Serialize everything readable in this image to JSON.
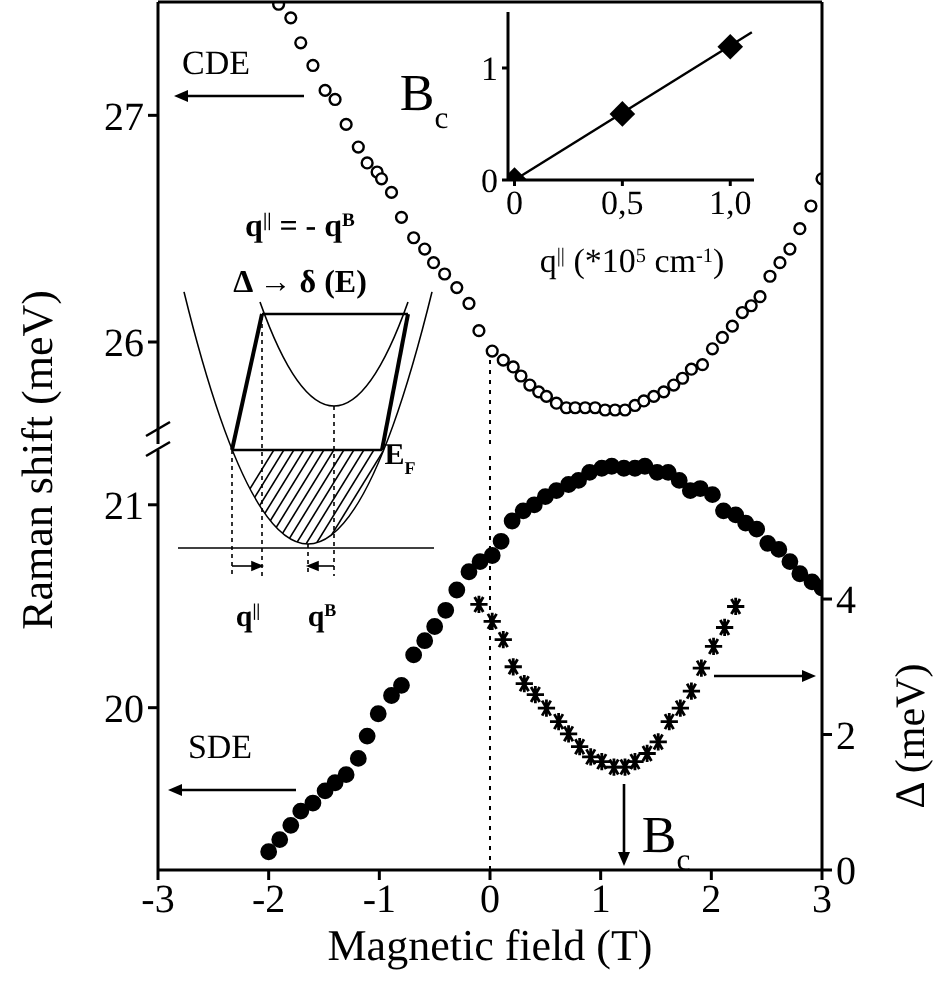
{
  "chart_data": [
    {
      "type": "scatter",
      "ylabel": "Raman shift (meV)",
      "xlim": [
        -3,
        3
      ],
      "ylim": [
        25.55,
        27.5
      ],
      "yticks": [
        26,
        27
      ],
      "tick_labels": "y",
      "series": [
        {
          "name": "CDE",
          "color": "#000000",
          "marker": "circle",
          "x": [
            -1.91,
            -1.8,
            -1.71,
            -1.6,
            -1.49,
            -1.4,
            -1.3,
            -1.19,
            -1.11,
            -1.02,
            -0.98,
            -0.89,
            -0.8,
            -0.69,
            -0.59,
            -0.51,
            -0.41,
            -0.3,
            -0.19,
            -0.1,
            0.02,
            0.12,
            0.21,
            0.28,
            0.36,
            0.44,
            0.51,
            0.6,
            0.69,
            0.77,
            0.86,
            0.95,
            1.04,
            1.13,
            1.22,
            1.31,
            1.39,
            1.48,
            1.57,
            1.66,
            1.74,
            1.82,
            1.92,
            2.01,
            2.1,
            2.19,
            2.28,
            2.36,
            2.44,
            2.53,
            2.62,
            2.71,
            2.8,
            2.9,
            3.0
          ],
          "values": [
            27.49,
            27.43,
            27.32,
            27.22,
            27.11,
            27.07,
            26.96,
            26.86,
            26.79,
            26.75,
            26.72,
            26.66,
            26.55,
            26.46,
            26.41,
            26.35,
            26.3,
            26.24,
            26.17,
            26.05,
            25.96,
            25.92,
            25.89,
            25.85,
            25.81,
            25.78,
            25.76,
            25.73,
            25.71,
            25.71,
            25.71,
            25.71,
            25.7,
            25.7,
            25.7,
            25.72,
            25.74,
            25.76,
            25.78,
            25.81,
            25.84,
            25.88,
            25.9,
            25.97,
            26.02,
            26.07,
            26.13,
            26.16,
            26.2,
            26.29,
            26.35,
            26.41,
            26.5,
            26.6,
            26.72
          ]
        }
      ],
      "ref_lines": [
        {
          "axis": "x",
          "value": 0,
          "color": "#000000",
          "line_style": "dotted"
        }
      ],
      "annotations": [
        "q$^{||}$ = - q$^{B}$",
        "Δ → δ (E)",
        "E$_{F}$",
        "q$^{||}$",
        "q$^{B}$"
      ]
    },
    {
      "type": "scatter",
      "xlabel": "Magnetic field (T)",
      "y2label": "Δ (meV)",
      "xlim": [
        -3,
        3
      ],
      "xticks": [
        -3,
        -2,
        -1,
        0,
        1,
        2,
        3
      ],
      "ylim": [
        19.2,
        21.27
      ],
      "yticks": [
        20,
        21
      ],
      "y2lim": [
        0,
        6.2
      ],
      "y2ticks": [
        0,
        2,
        4
      ],
      "series": [
        {
          "name": "SDE",
          "color": "#000000",
          "marker": "circle",
          "x": [
            -2.0,
            -1.9,
            -1.8,
            -1.71,
            -1.6,
            -1.49,
            -1.4,
            -1.3,
            -1.19,
            -1.11,
            -1.01,
            -0.89,
            -0.8,
            -0.69,
            -0.59,
            -0.5,
            -0.4,
            -0.3,
            -0.19,
            -0.09,
            0.02,
            0.1,
            0.2,
            0.3,
            0.4,
            0.5,
            0.6,
            0.71,
            0.8,
            0.9,
            1.01,
            1.1,
            1.21,
            1.31,
            1.4,
            1.51,
            1.61,
            1.71,
            1.81,
            1.9,
            2.01,
            2.11,
            2.22,
            2.31,
            2.41,
            2.51,
            2.61,
            2.71,
            2.8,
            2.91,
            3.0
          ],
          "values": [
            19.29,
            19.35,
            19.42,
            19.49,
            19.53,
            19.59,
            19.63,
            19.67,
            19.75,
            19.86,
            19.97,
            20.06,
            20.11,
            20.26,
            20.33,
            20.4,
            20.48,
            20.58,
            20.67,
            20.72,
            20.75,
            20.82,
            20.92,
            20.97,
            21.0,
            21.04,
            21.07,
            21.1,
            21.12,
            21.16,
            21.18,
            21.19,
            21.18,
            21.18,
            21.19,
            21.16,
            21.16,
            21.12,
            21.07,
            21.08,
            21.05,
            20.97,
            20.95,
            20.91,
            20.88,
            20.81,
            20.78,
            20.72,
            20.66,
            20.62,
            20.59
          ]
        },
        {
          "axis": "y2",
          "color": "#000000",
          "marker": "cross",
          "x": [
            -0.1,
            0.02,
            0.12,
            0.21,
            0.31,
            0.41,
            0.51,
            0.62,
            0.71,
            0.81,
            0.91,
            1.01,
            1.12,
            1.22,
            1.31,
            1.42,
            1.52,
            1.62,
            1.72,
            1.82,
            1.91,
            2.02,
            2.12,
            2.22
          ],
          "values": [
            3.92,
            3.67,
            3.4,
            3.0,
            2.75,
            2.59,
            2.39,
            2.19,
            2.01,
            1.82,
            1.67,
            1.6,
            1.52,
            1.52,
            1.6,
            1.72,
            1.89,
            2.19,
            2.39,
            2.64,
            2.98,
            3.3,
            3.58,
            3.89
          ]
        }
      ],
      "ref_lines": [
        {
          "axis": "x",
          "value": 0,
          "color": "#000000",
          "line_style": "dotted"
        }
      ],
      "annotations": [
        "B$_{c}$"
      ]
    },
    {
      "type": "scatter",
      "xlabel": "q$^{||}$  (*10$^{5}$ cm$^{-1}$)",
      "ylabel": "B$_{c}$",
      "xlim": [
        -0.03,
        1.11
      ],
      "xticks": [
        0,
        {
          "value": 0.5,
          "label": "0,5"
        },
        {
          "value": 1,
          "label": "1,0"
        }
      ],
      "ylim": [
        0,
        1.5
      ],
      "yticks": [
        0,
        1
      ],
      "series": [
        {
          "color": "#000000",
          "marker": "diamond",
          "x": [
            0,
            0.5,
            1.0
          ],
          "values": [
            0,
            0.59,
            1.19
          ]
        },
        {
          "type": "line",
          "color": "#000000",
          "marker": "none",
          "x": [
            0,
            1.1
          ],
          "values": [
            0,
            1.32
          ]
        }
      ]
    }
  ]
}
